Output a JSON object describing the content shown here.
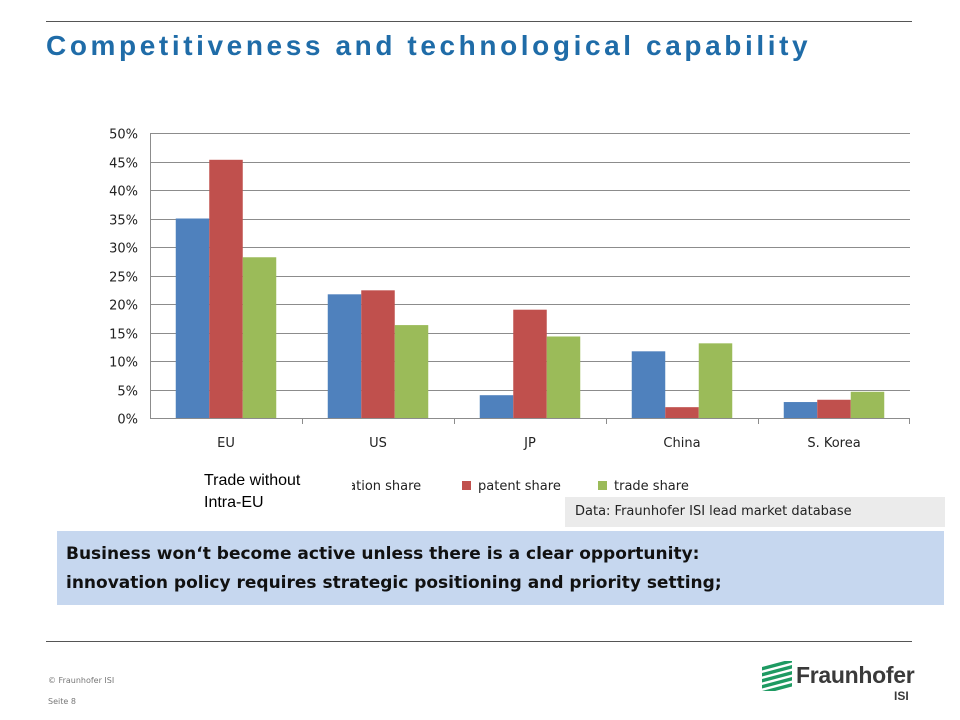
{
  "slide": {
    "title": "Competitiveness and technological capability",
    "overlay_note": "Trade without\nIntra-EU",
    "source": "Data: Fraunhofer ISI lead market database",
    "message_lines": [
      "Business won‘t become active unless there is a clear opportunity:",
      "innovation policy requires strategic positioning and priority setting;"
    ],
    "footer_copyright": "© Fraunhofer ISI",
    "footer_page": "Seite 8",
    "logo_name": "Fraunhofer",
    "logo_sub": "ISI",
    "colors": {
      "title": "#1f6ca8",
      "message_bg": "#c6d7ef",
      "logo_green": "#1e9a62"
    }
  },
  "chart_data": {
    "type": "bar",
    "title": "",
    "xlabel": "",
    "ylabel": "",
    "categories": [
      "EU",
      "US",
      "JP",
      "China",
      "S. Korea"
    ],
    "series": [
      {
        "name": "publication share",
        "visible_legend_label": "cation share",
        "color": "#4f81bd",
        "values": [
          0.35,
          0.217,
          0.04,
          0.117,
          0.028
        ]
      },
      {
        "name": "patent share",
        "visible_legend_label": "patent share",
        "color": "#c0504d",
        "values": [
          0.453,
          0.224,
          0.19,
          0.019,
          0.032
        ]
      },
      {
        "name": "trade share",
        "visible_legend_label": "trade share",
        "color": "#9bbb59",
        "values": [
          0.282,
          0.163,
          0.143,
          0.131,
          0.046
        ]
      }
    ],
    "ylim": [
      0,
      0.5
    ],
    "yticks": [
      0,
      0.05,
      0.1,
      0.15,
      0.2,
      0.25,
      0.3,
      0.35,
      0.4,
      0.45,
      0.5
    ],
    "ytick_labels": [
      "0%",
      "5%",
      "10%",
      "15%",
      "20%",
      "25%",
      "30%",
      "35%",
      "40%",
      "45%",
      "50%"
    ],
    "grid": true,
    "legend_position": "bottom"
  }
}
